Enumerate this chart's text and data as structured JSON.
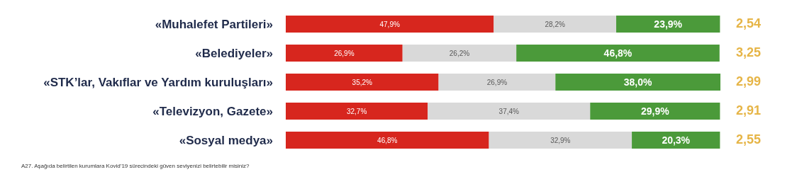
{
  "chart_data": {
    "type": "bar",
    "orientation": "horizontal",
    "stacked": true,
    "legend": false,
    "grid": false,
    "categories": [
      "«Muhalefet Partileri»",
      "«Belediyeler»",
      "«STK’lar, Vakıflar ve Yardım kuruluşları»",
      "«Televizyon, Gazete»",
      "«Sosyal medya»"
    ],
    "series": [
      {
        "color": "#d7261e",
        "values": [
          47.9,
          26.9,
          35.2,
          32.7,
          46.8
        ],
        "value_labels": [
          "47,9%",
          "26,9%",
          "35,2%",
          "32,7%",
          "46,8%"
        ]
      },
      {
        "color": "#d9d9d9",
        "values": [
          28.2,
          26.2,
          26.9,
          37.4,
          32.9
        ],
        "value_labels": [
          "28,2%",
          "26,2%",
          "26,9%",
          "37,4%",
          "32,9%"
        ]
      },
      {
        "color": "#4b9a3a",
        "values": [
          23.9,
          46.8,
          38.0,
          29.9,
          20.3
        ],
        "value_labels": [
          "23,9%",
          "46,8%",
          "38,0%",
          "29,9%",
          "20,3%"
        ]
      }
    ],
    "annotations": [
      "2,54",
      "3,25",
      "2,99",
      "2,91",
      "2,55",
      "A27. Aşağıda belirtilen kurumlara Kovid’19 sürecindeki güven seviyenizi belirtebilir misiniz?"
    ]
  }
}
